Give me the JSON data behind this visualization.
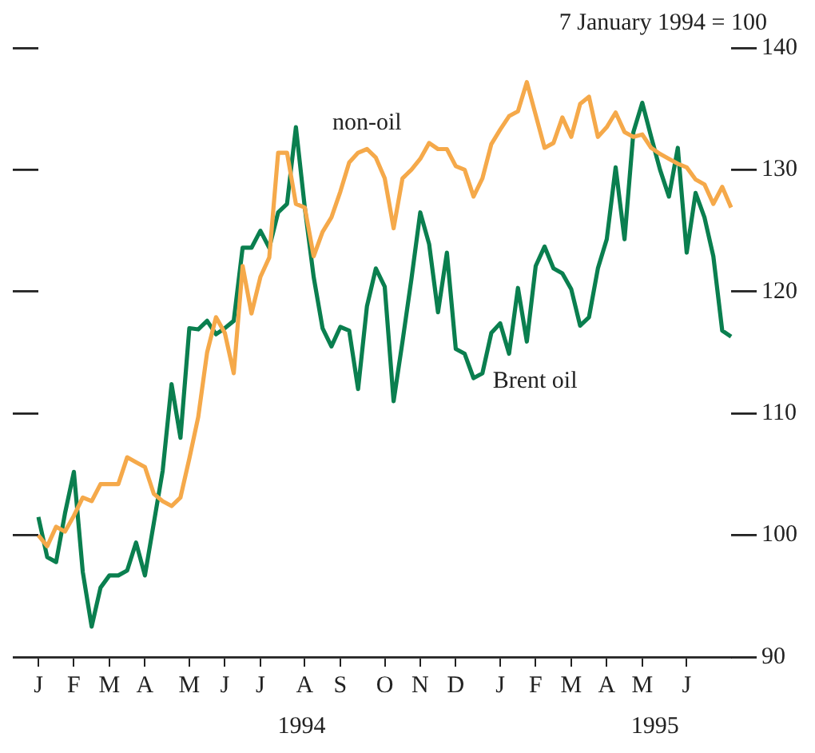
{
  "chart_data": {
    "type": "line",
    "annotations": [
      "7 January 1994 = 100",
      "1994",
      "1995"
    ],
    "categories": [
      "J",
      null,
      null,
      null,
      "F",
      null,
      null,
      null,
      "M",
      null,
      null,
      null,
      "A",
      null,
      null,
      null,
      null,
      "M",
      null,
      null,
      null,
      "J",
      null,
      null,
      null,
      "J",
      null,
      null,
      null,
      null,
      "A",
      null,
      null,
      null,
      "S",
      null,
      null,
      null,
      null,
      "O",
      null,
      null,
      null,
      "N",
      null,
      null,
      null,
      "D",
      null,
      null,
      null,
      null,
      "J",
      null,
      null,
      null,
      "F",
      null,
      null,
      null,
      "M",
      null,
      null,
      null,
      "A",
      null,
      null,
      null,
      "M",
      null,
      null,
      null,
      null,
      "J",
      null,
      null,
      null,
      null,
      null
    ],
    "series": [
      {
        "name": "non-oil",
        "color": "#f5a94a",
        "values": [
          100,
          99.1,
          100.7,
          100.3,
          101.6,
          103.1,
          102.8,
          104.2,
          104.2,
          104.2,
          106.4,
          106,
          105.6,
          103.4,
          102.8,
          102.4,
          103.1,
          106.3,
          109.7,
          115,
          117.9,
          116.6,
          113.3,
          122.1,
          118.2,
          121.2,
          122.8,
          131.4,
          131.4,
          127.2,
          126.9,
          122.9,
          124.9,
          126.1,
          128.2,
          130.6,
          131.4,
          131.7,
          131,
          129.3,
          125.2,
          129.3,
          130,
          130.9,
          132.2,
          131.7,
          131.7,
          130.3,
          130,
          127.8,
          129.3,
          132.1,
          133.3,
          134.4,
          134.8,
          137.2,
          134.5,
          131.8,
          132.2,
          134.3,
          132.7,
          135.4,
          136,
          132.7,
          133.5,
          134.7,
          133.1,
          132.7,
          132.9,
          131.8,
          131.3,
          130.9,
          130.5,
          130.2,
          129.2,
          128.8,
          127.2,
          128.6,
          126.9
        ]
      },
      {
        "name": "Brent oil",
        "color": "#0a7f4f",
        "values": [
          101.5,
          98.2,
          97.8,
          101.8,
          105.2,
          97,
          92.5,
          95.7,
          96.7,
          96.7,
          97.1,
          99.4,
          96.7,
          101,
          105.3,
          112.4,
          108,
          117,
          116.9,
          117.6,
          116.5,
          117,
          117.6,
          123.6,
          123.6,
          125,
          123.6,
          126.5,
          127.2,
          133.5,
          126.9,
          121.2,
          117,
          115.5,
          117.1,
          116.8,
          112,
          118.8,
          121.9,
          120.4,
          111,
          115.9,
          121,
          126.5,
          123.9,
          118.3,
          123.2,
          115.3,
          114.9,
          112.9,
          113.3,
          116.6,
          117.4,
          114.9,
          120.3,
          115.9,
          122.1,
          123.7,
          121.9,
          121.5,
          120.2,
          117.2,
          117.9,
          121.9,
          124.3,
          130.2,
          124.3,
          133.1,
          135.5,
          132.7,
          130,
          127.8,
          131.8,
          123.2,
          128.1,
          126.1,
          122.9,
          116.8,
          116.3
        ]
      }
    ],
    "ylim": [
      90,
      140
    ],
    "yticks": [
      90,
      100,
      110,
      120,
      130,
      140
    ],
    "grid": false,
    "legend": false,
    "marker": "none",
    "line_style": "solid"
  }
}
